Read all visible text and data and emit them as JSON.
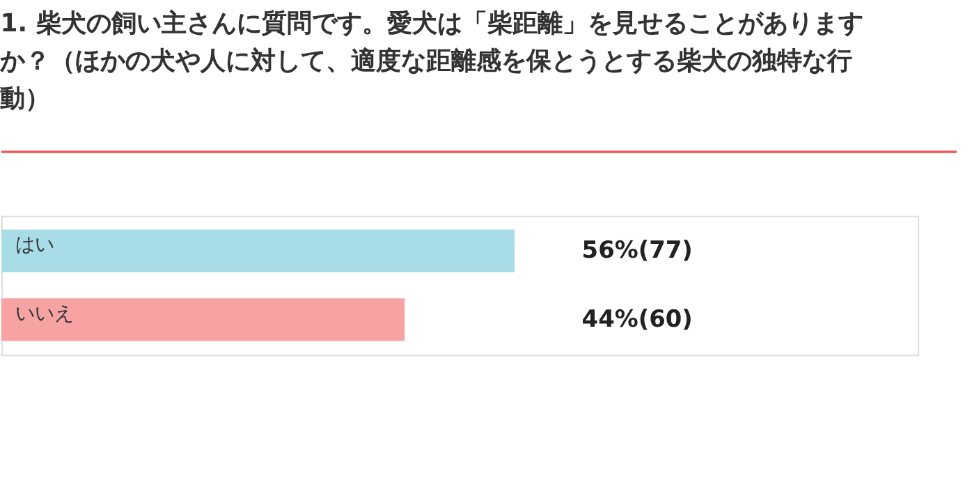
{
  "chart_data": {
    "type": "bar",
    "orientation": "horizontal",
    "title": "1. 柴犬の飼い主さんに質問です。愛犬は「柴距離」を見せることがありますか？（ほかの犬や人に対して、適度な距離感を保とうとする柴犬の独特な行動）",
    "categories": [
      "はい",
      "いいえ"
    ],
    "values": [
      56,
      44
    ],
    "colors": [
      "#a8dce6",
      "#f7a3a3"
    ],
    "value_labels": [
      "56%(77)",
      "44%(60)"
    ],
    "xlim": [
      0,
      100
    ],
    "tick_labels": false
  }
}
